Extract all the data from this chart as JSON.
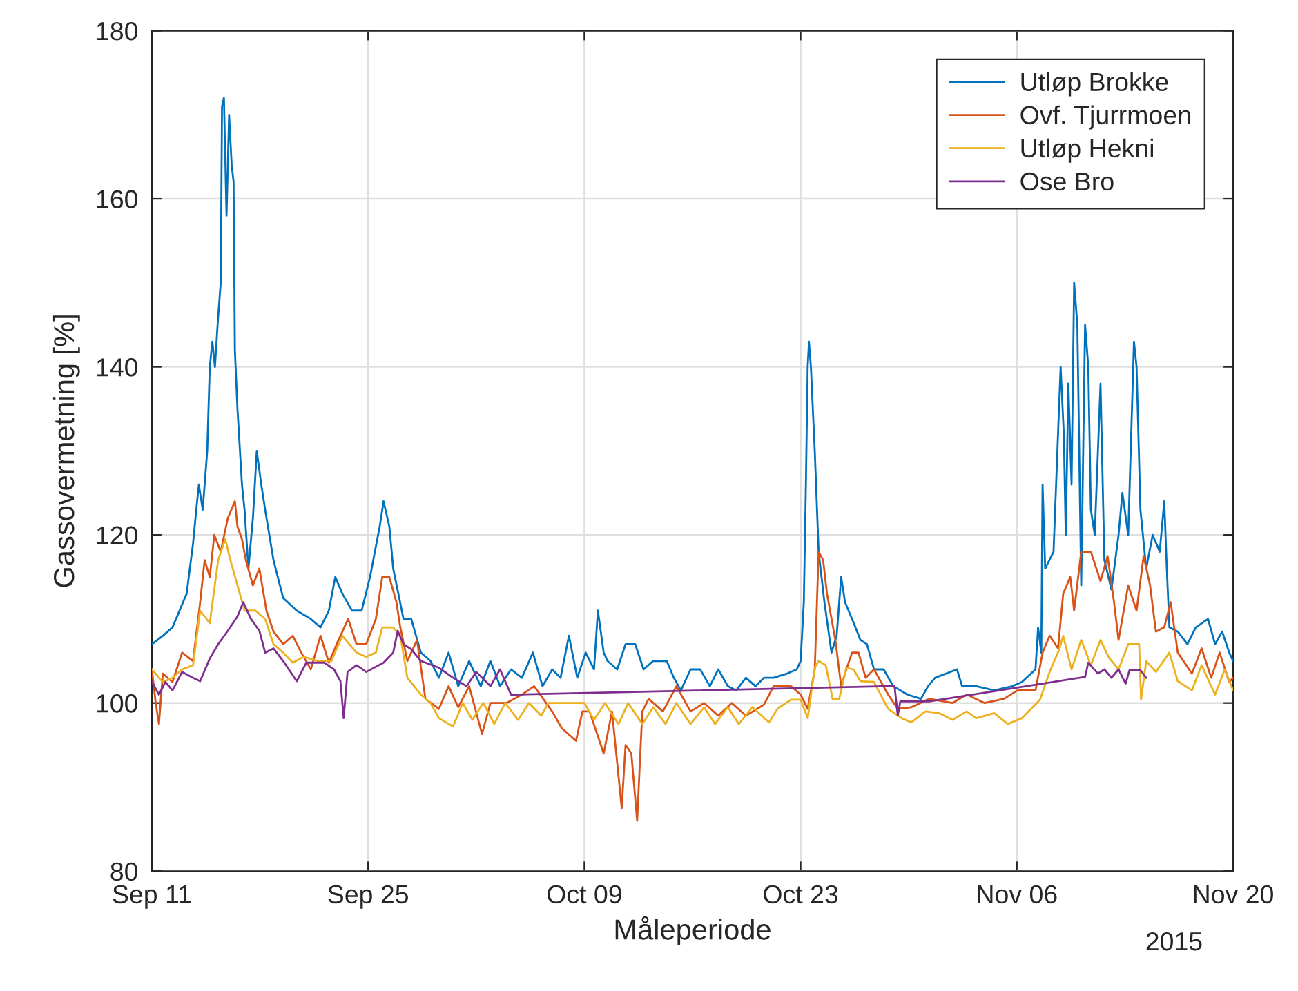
{
  "chart_data": {
    "type": "line",
    "xlabel": "Måleperiode",
    "ylabel": "Gassovermetning [%]",
    "xlim": [
      "2015-09-11",
      "2015-11-20"
    ],
    "xticks": [
      {
        "value": "2015-09-11",
        "label": "Sep 11"
      },
      {
        "value": "2015-09-25",
        "label": "Sep 25"
      },
      {
        "value": "2015-10-09",
        "label": "Oct 09"
      },
      {
        "value": "2015-10-23",
        "label": "Oct 23"
      },
      {
        "value": "2015-11-06",
        "label": "Nov 06"
      },
      {
        "value": "2015-11-20",
        "label": "Nov 20"
      }
    ],
    "ylim": [
      80,
      180
    ],
    "yticks": [
      80,
      100,
      120,
      140,
      160,
      180
    ],
    "grid": true,
    "legend": "top right",
    "line_style": "solid",
    "annotations": [
      "2015"
    ],
    "series": [
      {
        "name": "Utløp Brokke",
        "color": "#0072bd",
        "x": [
          "2015-09-11T00:00",
          "2015-09-11T17:00",
          "2015-09-12T08:00",
          "2015-09-13T06:00",
          "2015-09-13T16:00",
          "2015-09-13T21:00",
          "2015-09-14T01:00",
          "2015-09-14T07:00",
          "2015-09-14T14:00",
          "2015-09-14T18:00",
          "2015-09-14T22:00",
          "2015-09-15T02:00",
          "2015-09-15T07:00",
          "2015-09-15T11:00",
          "2015-09-15T13:00",
          "2015-09-15T16:00",
          "2015-09-15T20:00",
          "2015-09-16T00:00",
          "2015-09-16T04:00",
          "2015-09-16T07:00",
          "2015-09-16T09:00",
          "2015-09-16T13:00",
          "2015-09-16T20:00",
          "2015-09-17T00:00",
          "2015-09-17T06:00",
          "2015-09-17T13:00",
          "2015-09-17T19:00",
          "2015-09-18T02:00",
          "2015-09-18T08:00",
          "2015-09-18T21:00",
          "2015-09-19T12:00",
          "2015-09-20T09:00",
          "2015-09-21T07:00",
          "2015-09-21T22:00",
          "2015-09-22T11:00",
          "2015-09-22T21:00",
          "2015-09-23T08:00",
          "2015-09-23T23:00",
          "2015-09-24T14:00",
          "2015-09-25T03:00",
          "2015-09-25T18:00",
          "2015-09-26T00:00",
          "2015-09-26T09:00",
          "2015-09-26T15:00",
          "2015-09-27T07:00",
          "2015-09-27T19:00",
          "2015-09-28T10:00",
          "2015-09-29T01:00",
          "2015-09-29T14:00",
          "2015-09-30T05:00",
          "2015-09-30T20:00",
          "2015-10-01T13:00",
          "2015-10-02T07:00",
          "2015-10-02T22:00",
          "2015-10-03T13:00",
          "2015-10-04T06:00",
          "2015-10-04T23:00",
          "2015-10-05T16:00",
          "2015-10-06T07:00",
          "2015-10-06T22:00",
          "2015-10-07T11:00",
          "2015-10-08T00:00",
          "2015-10-08T13:00",
          "2015-10-09T02:00",
          "2015-10-09T15:00",
          "2015-10-09T21:00",
          "2015-10-10T06:00",
          "2015-10-10T12:00",
          "2015-10-11T03:00",
          "2015-10-11T16:00",
          "2015-10-12T07:00",
          "2015-10-12T20:00",
          "2015-10-13T11:00",
          "2015-10-14T08:00",
          "2015-10-14T19:00",
          "2015-10-15T06:00",
          "2015-10-15T21:00",
          "2015-10-16T12:00",
          "2015-10-17T03:00",
          "2015-10-17T16:00",
          "2015-10-18T07:00",
          "2015-10-18T20:00",
          "2015-10-19T11:00",
          "2015-10-20T02:00",
          "2015-10-20T15:00",
          "2015-10-21T06:00",
          "2015-10-22T03:00",
          "2015-10-22T18:00",
          "2015-10-23T00:00",
          "2015-10-23T05:00",
          "2015-10-23T08:00",
          "2015-10-23T11:00",
          "2015-10-23T13:00",
          "2015-10-23T16:00",
          "2015-10-23T22:00",
          "2015-10-24T04:00",
          "2015-10-24T13:00",
          "2015-10-25T00:00",
          "2015-10-25T08:00",
          "2015-10-25T15:00",
          "2015-10-25T21:00",
          "2015-10-26T08:00",
          "2015-10-26T21:00",
          "2015-10-27T07:00",
          "2015-10-27T18:00",
          "2015-10-28T09:00",
          "2015-10-29T00:00",
          "2015-10-29T22:00",
          "2015-10-30T19:00",
          "2015-10-31T06:00",
          "2015-10-31T17:00",
          "2015-11-02T03:00",
          "2015-11-02T11:00",
          "2015-11-03T09:00",
          "2015-11-04T13:00",
          "2015-11-05T17:00",
          "2015-11-06T08:00",
          "2015-11-07T05:00",
          "2015-11-07T09:00",
          "2015-11-07T14:00",
          "2015-11-07T16:00",
          "2015-11-07T20:00",
          "2015-11-08T09:00",
          "2015-11-08T20:00",
          "2015-11-09T01:00",
          "2015-11-09T04:00",
          "2015-11-09T08:00",
          "2015-11-09T13:00",
          "2015-11-09T17:00",
          "2015-11-09T22:00",
          "2015-11-10T04:00",
          "2015-11-10T10:00",
          "2015-11-10T15:00",
          "2015-11-10T19:00",
          "2015-11-11T01:00",
          "2015-11-11T10:00",
          "2015-11-11T16:00",
          "2015-11-12T03:00",
          "2015-11-12T14:00",
          "2015-11-12T20:00",
          "2015-11-13T05:00",
          "2015-11-13T14:00",
          "2015-11-13T18:00",
          "2015-11-14T00:00",
          "2015-11-14T09:00",
          "2015-11-14T19:00",
          "2015-11-15T06:00",
          "2015-11-15T13:00",
          "2015-11-15T17:00",
          "2015-11-15T21:00",
          "2015-11-16T10:00",
          "2015-11-17T01:00",
          "2015-11-17T14:00",
          "2015-11-18T09:00",
          "2015-11-18T20:00",
          "2015-11-19T07:00",
          "2015-11-19T18:00",
          "2015-11-20T00:00"
        ],
        "values": [
          107,
          108,
          109,
          113,
          119,
          123,
          126,
          123,
          130,
          140,
          143,
          140,
          146,
          150,
          171,
          172,
          158,
          170,
          164,
          162,
          142,
          135,
          126,
          123,
          116,
          122,
          130,
          126,
          123,
          117,
          112.5,
          111,
          110,
          109,
          111,
          115,
          113,
          111,
          111,
          115,
          121,
          124,
          121,
          116,
          110,
          110,
          106,
          105,
          103,
          106,
          102,
          105,
          102,
          105,
          102,
          104,
          103,
          106,
          102,
          104,
          103,
          108,
          103,
          106,
          104,
          111,
          106,
          105,
          104,
          107,
          107,
          104,
          105,
          105,
          103,
          101.5,
          104,
          104,
          102,
          104,
          102,
          101.5,
          103,
          102,
          103,
          103,
          103.5,
          104,
          105,
          112,
          125,
          140,
          143,
          140,
          130,
          118,
          112,
          106,
          108,
          115,
          112,
          110,
          107.5,
          107,
          104,
          104,
          102,
          101,
          100.5,
          102,
          103,
          104,
          102,
          102,
          101.5,
          102,
          102.5,
          104,
          109,
          106,
          126,
          116,
          118,
          140,
          132,
          120,
          138,
          126,
          150,
          145,
          114,
          145,
          140,
          123,
          120,
          138,
          117,
          113.5,
          120,
          125,
          120,
          143,
          140,
          123,
          116,
          120,
          118,
          124,
          116,
          109,
          108.5,
          107,
          109,
          110,
          107,
          108.5,
          106,
          105
        ]
      },
      {
        "name": "Ovf. Tjurrmoen",
        "color": "#d95319",
        "x": [
          "2015-09-11T00:00",
          "2015-09-11T06:00",
          "2015-09-11T11:00",
          "2015-09-11T17:00",
          "2015-09-12T08:00",
          "2015-09-12T23:00",
          "2015-09-13T16:00",
          "2015-09-14T03:00",
          "2015-09-14T10:00",
          "2015-09-14T18:00",
          "2015-09-15T01:00",
          "2015-09-15T11:00",
          "2015-09-15T22:00",
          "2015-09-16T09:00",
          "2015-09-16T13:00",
          "2015-09-16T20:00",
          "2015-09-17T02:00",
          "2015-09-17T13:00",
          "2015-09-17T23:00",
          "2015-09-18T10:00",
          "2015-09-18T21:00",
          "2015-09-19T12:00",
          "2015-09-20T03:00",
          "2015-09-20T16:00",
          "2015-09-21T07:00",
          "2015-09-21T22:00",
          "2015-09-22T11:00",
          "2015-09-23T02:00",
          "2015-09-23T17:00",
          "2015-09-24T06:00",
          "2015-09-24T21:00",
          "2015-09-25T12:00",
          "2015-09-25T22:00",
          "2015-09-26T09:00",
          "2015-09-26T20:00",
          "2015-09-27T02:00",
          "2015-09-27T13:00",
          "2015-09-28T04:00",
          "2015-09-28T17:00",
          "2015-09-29T14:00",
          "2015-09-30T05:00",
          "2015-09-30T20:00",
          "2015-10-01T13:00",
          "2015-10-02T09:00",
          "2015-10-02T22:00",
          "2015-10-03T23:00",
          "2015-10-04T23:00",
          "2015-10-05T18:00",
          "2015-10-06T22:00",
          "2015-10-07T13:00",
          "2015-10-08T11:00",
          "2015-10-08T21:00",
          "2015-10-09T08:00",
          "2015-10-10T06:00",
          "2015-10-10T19:00",
          "2015-10-11T10:00",
          "2015-10-11T16:00",
          "2015-10-12T01:00",
          "2015-10-12T10:00",
          "2015-10-12T18:00",
          "2015-10-13T04:00",
          "2015-10-14T02:00",
          "2015-10-14T23:00",
          "2015-10-15T21:00",
          "2015-10-16T18:00",
          "2015-10-17T16:00",
          "2015-10-18T13:00",
          "2015-10-19T11:00",
          "2015-10-20T15:00",
          "2015-10-21T06:00",
          "2015-10-22T09:00",
          "2015-10-23T00:00",
          "2015-10-23T11:00",
          "2015-10-23T22:00",
          "2015-10-24T04:00",
          "2015-10-24T11:00",
          "2015-10-24T17:00",
          "2015-10-25T06:00",
          "2015-10-25T15:00",
          "2015-10-25T23:00",
          "2015-10-26T08:00",
          "2015-10-26T18:00",
          "2015-10-27T05:00",
          "2015-10-27T18:00",
          "2015-10-28T16:00",
          "2015-10-29T07:00",
          "2015-10-30T04:00",
          "2015-10-31T08:00",
          "2015-11-01T20:00",
          "2015-11-02T18:00",
          "2015-11-03T22:00",
          "2015-11-05T04:00",
          "2015-11-06T01:00",
          "2015-11-07T05:00",
          "2015-11-07T16:00",
          "2015-11-08T03:00",
          "2015-11-08T16:00",
          "2015-11-09T00:00",
          "2015-11-09T11:00",
          "2015-11-09T17:00",
          "2015-11-10T04:00",
          "2015-11-10T19:00",
          "2015-11-11T10:00",
          "2015-11-11T21:00",
          "2015-11-12T07:00",
          "2015-11-12T14:00",
          "2015-11-13T05:00",
          "2015-11-13T18:00",
          "2015-11-14T05:00",
          "2015-11-14T15:00",
          "2015-11-15T00:00",
          "2015-11-15T13:00",
          "2015-11-15T23:00",
          "2015-11-16T10:00",
          "2015-11-17T08:00",
          "2015-11-17T23:00",
          "2015-11-18T14:00",
          "2015-11-19T03:00",
          "2015-11-19T18:00",
          "2015-11-20T00:00"
        ],
        "values": [
          104,
          100,
          97.5,
          103.5,
          102.5,
          106,
          105,
          112,
          117,
          115,
          120,
          118,
          122,
          124,
          121,
          119.5,
          117,
          114,
          116,
          111,
          108.5,
          107,
          108,
          106,
          104,
          108,
          104.8,
          107.5,
          110,
          107,
          107,
          110,
          115,
          115,
          112,
          109,
          105,
          107.5,
          100.5,
          99.3,
          102,
          99.5,
          102,
          96.3,
          100,
          100,
          101,
          102,
          99,
          97,
          95.5,
          99,
          99,
          94,
          99,
          87.5,
          95,
          94,
          86,
          99,
          100.5,
          99,
          102,
          99,
          100,
          98.5,
          100,
          98.5,
          99.8,
          102,
          102,
          101,
          99.3,
          104,
          118,
          117,
          113,
          107.5,
          102,
          104,
          106,
          106,
          103,
          104,
          101,
          99.3,
          99.5,
          100.5,
          100,
          101,
          100,
          100.5,
          101.5,
          101.5,
          106,
          108,
          106.5,
          113,
          115,
          111,
          118,
          118,
          114.5,
          117.5,
          112,
          107.5,
          114,
          111,
          117.5,
          114,
          108.5,
          109,
          112,
          106,
          103.5,
          106.5,
          103,
          106,
          102.5,
          103
        ]
      },
      {
        "name": "Utløp Hekni",
        "color": "#edb120",
        "x": [
          "2015-09-11T00:00",
          "2015-09-11T17:00",
          "2015-09-12T08:00",
          "2015-09-12T23:00",
          "2015-09-13T16:00",
          "2015-09-14T03:00",
          "2015-09-14T18:00",
          "2015-09-15T07:00",
          "2015-09-15T18:00",
          "2015-09-16T02:00",
          "2015-09-16T13:00",
          "2015-09-17T00:00",
          "2015-09-17T17:00",
          "2015-09-18T08:00",
          "2015-09-18T21:00",
          "2015-09-19T12:00",
          "2015-09-20T03:00",
          "2015-09-20T20:00",
          "2015-09-21T18:00",
          "2015-09-22T15:00",
          "2015-09-23T08:00",
          "2015-09-24T06:00",
          "2015-09-24T21:00",
          "2015-09-25T12:00",
          "2015-09-25T22:00",
          "2015-09-26T15:00",
          "2015-09-27T02:00",
          "2015-09-27T13:00",
          "2015-09-28T10:00",
          "2015-09-29T01:00",
          "2015-09-29T14:00",
          "2015-09-30T12:00",
          "2015-10-01T03:00",
          "2015-10-01T18:00",
          "2015-10-02T11:00",
          "2015-10-03T04:00",
          "2015-10-03T21:00",
          "2015-10-04T17:00",
          "2015-10-05T10:00",
          "2015-10-06T05:00",
          "2015-10-06T16:00",
          "2015-10-09T00:00",
          "2015-10-09T15:00",
          "2015-10-10T08:00",
          "2015-10-11T05:00",
          "2015-10-11T20:00",
          "2015-10-12T18:00",
          "2015-10-13T11:00",
          "2015-10-14T06:00",
          "2015-10-14T23:00",
          "2015-10-15T21:00",
          "2015-10-16T18:00",
          "2015-10-17T11:00",
          "2015-10-18T07:00",
          "2015-10-19T00:00",
          "2015-10-19T21:00",
          "2015-10-20T23:00",
          "2015-10-21T12:00",
          "2015-10-22T09:00",
          "2015-10-23T00:00",
          "2015-10-23T11:00",
          "2015-10-23T22:00",
          "2015-10-24T04:00",
          "2015-10-24T15:00",
          "2015-10-25T02:00",
          "2015-10-25T12:00",
          "2015-10-25T23:00",
          "2015-10-26T10:00",
          "2015-10-26T21:00",
          "2015-10-27T18:00",
          "2015-10-28T16:00",
          "2015-10-29T13:00",
          "2015-10-30T04:00",
          "2015-10-31T02:00",
          "2015-10-31T23:00",
          "2015-11-01T20:00",
          "2015-11-02T18:00",
          "2015-11-03T09:00",
          "2015-11-04T13:00",
          "2015-11-05T10:00",
          "2015-11-06T08:00",
          "2015-11-07T12:00",
          "2015-11-08T03:00",
          "2015-11-08T18:00",
          "2015-11-09T00:00",
          "2015-11-09T13:00",
          "2015-11-10T04:00",
          "2015-11-10T19:00",
          "2015-11-11T10:00",
          "2015-11-11T23:00",
          "2015-11-12T14:00",
          "2015-11-13T05:00",
          "2015-11-13T18:00",
          "2015-11-13T22:00",
          "2015-11-14T01:00",
          "2015-11-14T09:00",
          "2015-11-15T00:00",
          "2015-11-15T21:00",
          "2015-11-16T10:00",
          "2015-11-17T08:00",
          "2015-11-17T23:00",
          "2015-11-18T20:00",
          "2015-11-19T11:00",
          "2015-11-20T00:00"
        ],
        "values": [
          104,
          102.5,
          103,
          104,
          104.5,
          111,
          109.5,
          117,
          119.5,
          117,
          114,
          111,
          111,
          110,
          107,
          106,
          104.8,
          105.5,
          105,
          105,
          108,
          106,
          105.5,
          106,
          109,
          109,
          108,
          103,
          101,
          100,
          98.2,
          97.2,
          100,
          98,
          100,
          97.5,
          100,
          98,
          100,
          98.5,
          100,
          100,
          98,
          100,
          97.5,
          100,
          97.5,
          99.5,
          97.5,
          100,
          97.5,
          99.5,
          97.5,
          99.5,
          97.5,
          99.5,
          97.7,
          99.3,
          100.4,
          100.4,
          98.2,
          104.2,
          105,
          104.5,
          100.4,
          100.5,
          104.2,
          104,
          102.6,
          102.5,
          99.3,
          98.2,
          97.7,
          99,
          98.8,
          98,
          99,
          98.2,
          98.8,
          97.5,
          98.2,
          100.4,
          103.7,
          106.4,
          108,
          104,
          107.5,
          104.5,
          107.5,
          105.4,
          104,
          107,
          107,
          107,
          100.4,
          105,
          103.7,
          106,
          102.6,
          101.5,
          104.5,
          101,
          104,
          101.5
        ]
      },
      {
        "name": "Ose Bro",
        "color": "#7e2f8e",
        "x": [
          "2015-09-11T00:00",
          "2015-09-11T11:00",
          "2015-09-11T21:00",
          "2015-09-12T08:00",
          "2015-09-12T23:00",
          "2015-09-13T16:00",
          "2015-09-14T03:00",
          "2015-09-14T18:00",
          "2015-09-15T07:00",
          "2015-09-15T22:00",
          "2015-09-16T13:00",
          "2015-09-16T22:00",
          "2015-09-17T10:00",
          "2015-09-17T23:00",
          "2015-09-18T08:00",
          "2015-09-18T21:00",
          "2015-09-19T12:00",
          "2015-09-20T09:00",
          "2015-09-21T00:00",
          "2015-09-22T04:00",
          "2015-09-22T19:00",
          "2015-09-23T05:00",
          "2015-09-23T10:00",
          "2015-09-23T16:00",
          "2015-09-24T06:00",
          "2015-09-24T21:00",
          "2015-09-26T00:00",
          "2015-09-26T15:00",
          "2015-09-26T22:00",
          "2015-09-27T07:00",
          "2015-09-27T19:00",
          "2015-09-28T10:00",
          "2015-09-29T14:00",
          "2015-09-30T12:00",
          "2015-10-01T09:00",
          "2015-10-02T00:00",
          "2015-10-02T22:00",
          "2015-10-03T13:00",
          "2015-10-04T06:00",
          "2015-10-04T12:00",
          "2015-10-28T09:00",
          "2015-10-29T02:00",
          "2015-10-29T07:00",
          "2015-10-29T11:00",
          "2015-10-31T08:00",
          "2015-11-10T10:00",
          "2015-11-10T15:00",
          "2015-11-11T06:00",
          "2015-11-11T16:00",
          "2015-11-12T03:00",
          "2015-11-12T14:00",
          "2015-11-13T01:00",
          "2015-11-13T07:00",
          "2015-11-14T00:00",
          "2015-11-14T09:00"
        ],
        "values": [
          102.5,
          101,
          102.5,
          101.5,
          103.7,
          103,
          102.6,
          105.3,
          107,
          108.6,
          110.3,
          112,
          110,
          108.6,
          106,
          106.5,
          105,
          102.6,
          104.8,
          104.8,
          104,
          102.6,
          98.2,
          103.7,
          104.5,
          103.7,
          104.8,
          106,
          108.6,
          107,
          106.4,
          105,
          104.2,
          103,
          102,
          103.7,
          102,
          104,
          101,
          101,
          102,
          102,
          98.5,
          100.2,
          100.2,
          103.1,
          104.8,
          103.5,
          104,
          103,
          104,
          102.3,
          103.9,
          103.9,
          103
        ]
      }
    ]
  }
}
